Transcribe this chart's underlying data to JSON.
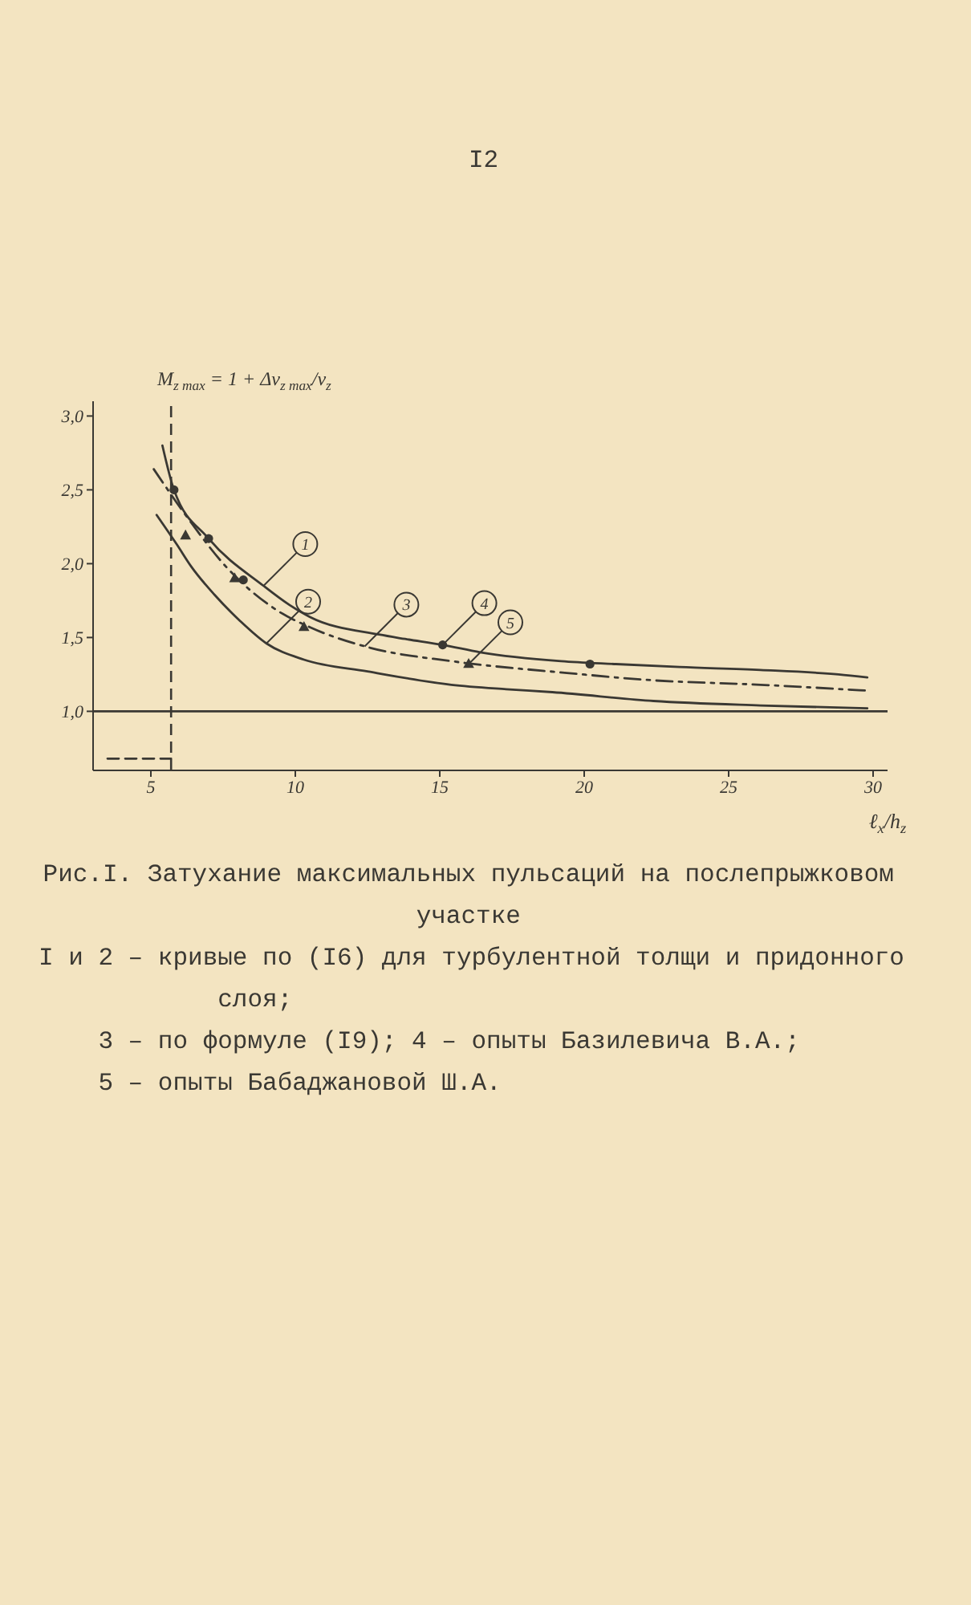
{
  "chart_data": {
    "type": "line",
    "title": "Рис.I. Затухание максимальных пульсаций на послепрыжковом участке",
    "xlabel": "ℓ$_{x}$/h$_{z}$",
    "ylabel": "M$_{z max}$ = 1 + Δv$_{z max}$/v$_{z}$",
    "xlim": [
      3,
      30.5
    ],
    "xticks": [
      5,
      10,
      15,
      20,
      25,
      30
    ],
    "ylim": [
      0.6,
      3.1
    ],
    "yticks": [
      {
        "value": 1,
        "label": "1,0"
      },
      {
        "value": 1.5,
        "label": "1,5"
      },
      {
        "value": 2,
        "label": "2,0"
      },
      {
        "value": 2.5,
        "label": "2,5"
      },
      {
        "value": 3,
        "label": "3,0"
      }
    ],
    "series": [
      {
        "color": "#3a3833",
        "line_style": "solid",
        "x": [
          5.4,
          5.8,
          7.0,
          8.9,
          9.8,
          10.5,
          12.9,
          13.8,
          15.1,
          16.4,
          19.2,
          21.1,
          23.3,
          26.1,
          28.8,
          29.8
        ],
        "values": [
          2.8,
          2.5,
          2.17,
          1.85,
          1.72,
          1.64,
          1.52,
          1.49,
          1.45,
          1.4,
          1.34,
          1.32,
          1.3,
          1.28,
          1.25,
          1.23
        ]
      },
      {
        "color": "#3a3833",
        "line_style": "solid",
        "x": [
          5.2,
          5.9,
          6.4,
          7.2,
          8.1,
          9.0,
          10.3,
          12.5,
          15.4,
          17.3,
          18.9,
          22.4,
          26.1,
          29.8
        ],
        "values": [
          2.33,
          2.13,
          1.98,
          1.79,
          1.61,
          1.46,
          1.35,
          1.27,
          1.18,
          1.15,
          1.13,
          1.07,
          1.04,
          1.02
        ]
      },
      {
        "color": "#3a3833",
        "line_style": "dashdot",
        "x": [
          5.1,
          6.2,
          7.6,
          9.4,
          10.5,
          12.6,
          15.4,
          19.4,
          22.4,
          26.1,
          29.8
        ],
        "values": [
          2.64,
          2.33,
          1.98,
          1.68,
          1.57,
          1.43,
          1.34,
          1.26,
          1.21,
          1.18,
          1.14
        ]
      },
      {
        "type": "scatter",
        "color": "#3a3833",
        "marker": "circle",
        "x": [
          5.8,
          7.0,
          8.2,
          15.1,
          20.2
        ],
        "values": [
          2.5,
          2.17,
          1.89,
          1.45,
          1.32
        ]
      },
      {
        "type": "scatter",
        "color": "#3a3833",
        "marker": "triangle",
        "x": [
          6.2,
          7.9,
          10.3,
          16.0
        ],
        "values": [
          2.19,
          1.9,
          1.57,
          1.32
        ]
      },
      {
        "color": "#3a3833",
        "line_style": "dashed",
        "x": [
          3.5,
          5.7
        ],
        "values": [
          0.68,
          0.68
        ]
      }
    ],
    "ref_lines": [
      {
        "axis": "y",
        "value": 1,
        "color": "#3a3833",
        "line_style": "solid"
      },
      {
        "axis": "x",
        "value": 5.7,
        "color": "#3a3833",
        "line_style": "dashed"
      }
    ],
    "annotations": [
      "I2",
      "I и 2 – кривые по (I6) для турбулентной толщи и придонного слоя;",
      "3 – по формуле (I9); 4 – опыты Базилевича В.А.;",
      "5 – опыты Бабаджановой Ш.А.",
      {
        "text": "1",
        "x": 8.9,
        "y": 1.85
      },
      {
        "text": "2",
        "x": 9.0,
        "y": 1.46
      },
      {
        "text": "3",
        "x": 12.4,
        "y": 1.44
      },
      {
        "text": "4",
        "x": 15.1,
        "y": 1.45
      },
      {
        "text": "5",
        "x": 16.0,
        "y": 1.32
      }
    ]
  }
}
